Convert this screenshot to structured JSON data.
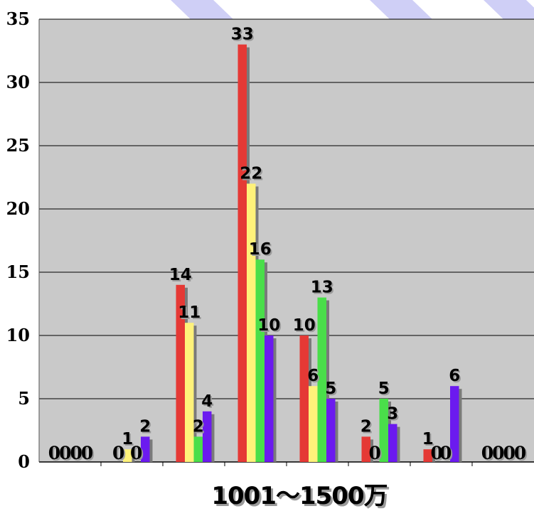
{
  "chart_data": {
    "type": "bar",
    "xlabel": "1001〜1500万",
    "ylabel": "",
    "ylim": [
      0,
      35
    ],
    "yticks": [
      0,
      5,
      10,
      15,
      20,
      25,
      30,
      35
    ],
    "grid": true,
    "categories": [
      "",
      "",
      "",
      "",
      "",
      "",
      "",
      ""
    ],
    "series": [
      {
        "color": "#e53935",
        "values": [
          0,
          0,
          14,
          33,
          10,
          2,
          1,
          0
        ]
      },
      {
        "color": "#fff27a",
        "values": [
          0,
          1,
          11,
          22,
          6,
          0,
          0,
          0
        ]
      },
      {
        "color": "#4ade4a",
        "values": [
          0,
          0,
          2,
          16,
          13,
          5,
          0,
          0
        ]
      },
      {
        "color": "#6b1aef",
        "values": [
          0,
          2,
          4,
          10,
          5,
          3,
          6,
          0
        ]
      }
    ]
  }
}
